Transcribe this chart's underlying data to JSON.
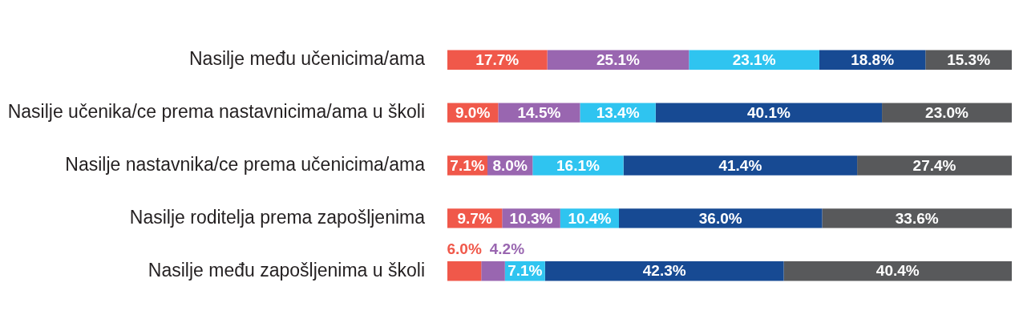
{
  "chart_data": {
    "type": "bar",
    "orientation": "horizontal",
    "stacked": true,
    "categories": [
      "Nasilje među učenicima/ama",
      "Nasilje učenika/ce prema nastavnicima/ama u školi",
      "Nasilje nastavnika/ce prema učenicima/ama",
      "Nasilje roditelja prema zapošljenima",
      "Nasilje među zapošljenima u školi"
    ],
    "xlim": [
      0,
      100
    ],
    "series": [
      {
        "color": "#f0584a",
        "values": [
          17.7,
          9.0,
          7.1,
          9.7,
          6.0
        ],
        "value_labels": [
          "17.7%",
          "9.0%",
          "7.1%",
          "9.7%",
          "6.0%"
        ]
      },
      {
        "color": "#9966b0",
        "values": [
          25.1,
          14.5,
          8.0,
          10.3,
          4.2
        ],
        "value_labels": [
          "25.1%",
          "14.5%",
          "8.0%",
          "10.3%",
          "4.2%"
        ]
      },
      {
        "color": "#2fc4f0",
        "values": [
          23.1,
          13.4,
          16.1,
          10.4,
          7.1
        ],
        "value_labels": [
          "23.1%",
          "13.4%",
          "16.1%",
          "10.4%",
          "7.1%"
        ]
      },
      {
        "color": "#174a93",
        "values": [
          18.8,
          40.1,
          41.4,
          36.0,
          42.3
        ],
        "value_labels": [
          "18.8%",
          "40.1%",
          "41.4%",
          "36.0%",
          "42.3%"
        ]
      },
      {
        "color": "#58595b",
        "values": [
          15.3,
          23.0,
          27.4,
          33.6,
          40.4
        ],
        "value_labels": [
          "15.3%",
          "23.0%",
          "27.4%",
          "33.6%",
          "40.4%"
        ]
      }
    ]
  }
}
